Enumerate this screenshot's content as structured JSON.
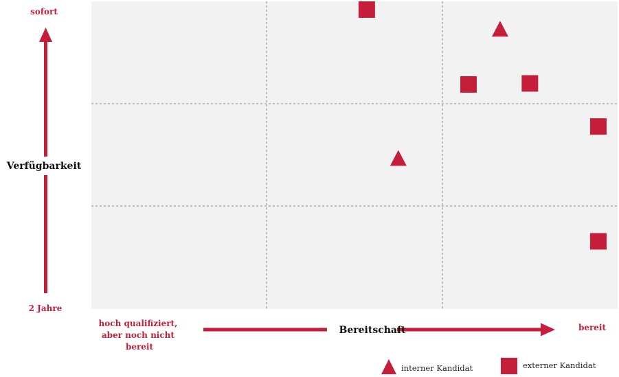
{
  "chart_data": {
    "type": "scatter",
    "title": "",
    "xlabel": "Bereitschaft",
    "ylabel": "Verfügbarkeit",
    "x_range": [
      0,
      3
    ],
    "y_range": [
      0,
      3
    ],
    "x_axis_labels": {
      "low": "hoch qualifiziert, aber noch nicht bereit",
      "high": "bereit"
    },
    "y_axis_labels": {
      "high": "sofort",
      "low": "2 Jahre"
    },
    "grid": "3x3 dashed",
    "legend_position": "bottom-right",
    "colors": {
      "marker": "#C41E3A",
      "plot_bg": "#F2F2F2",
      "grid": "#888888"
    },
    "series": [
      {
        "name": "interner Kandidat",
        "marker": "triangle",
        "points": [
          {
            "x": 2.33,
            "y": 2.73
          },
          {
            "x": 1.75,
            "y": 1.47
          }
        ]
      },
      {
        "name": "externer Kandidat",
        "marker": "square",
        "points": [
          {
            "x": 1.57,
            "y": 2.92
          },
          {
            "x": 2.15,
            "y": 2.19
          },
          {
            "x": 2.5,
            "y": 2.2
          },
          {
            "x": 2.89,
            "y": 1.78
          },
          {
            "x": 2.89,
            "y": 0.66
          }
        ]
      }
    ]
  }
}
